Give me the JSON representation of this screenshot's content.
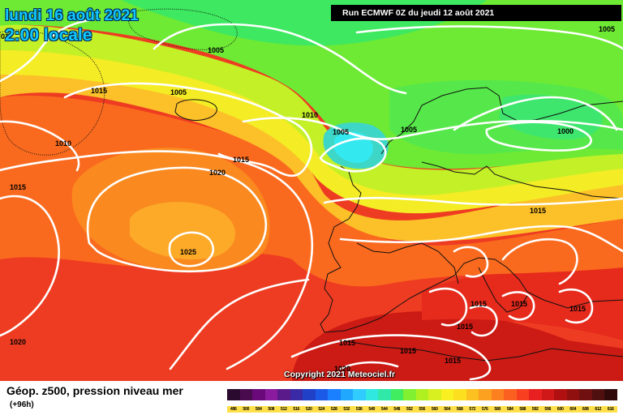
{
  "header": {
    "date_line1": "lundi 16 août 2021",
    "date_line2": "2:00 locale",
    "run_info": "Run ECMWF 0Z du jeudi 12 août 2021",
    "copyright": "Copyright 2021 Meteociel.fr"
  },
  "footer": {
    "product_title": "Géop. z500, pression niveau mer",
    "forecast_step": "(+96h)"
  },
  "isobar_labels": [
    "01",
    "1005",
    "1005",
    "1015",
    "1005",
    "1010",
    "1010",
    "1005",
    "1005",
    "1000",
    "1015",
    "1015",
    "1020",
    "1025",
    "1015",
    "1020",
    "1015",
    "1015",
    "1015",
    "1015",
    "1015",
    "1015",
    "1020",
    "1015"
  ],
  "scale": {
    "labels": [
      "496",
      "500",
      "504",
      "508",
      "512",
      "516",
      "520",
      "524",
      "528",
      "532",
      "536",
      "540",
      "544",
      "548",
      "552",
      "556",
      "560",
      "564",
      "568",
      "572",
      "576",
      "580",
      "584",
      "588",
      "592",
      "596",
      "600",
      "604",
      "608",
      "612",
      "616"
    ],
    "colors": [
      "#2a0a2e",
      "#4a0a4e",
      "#6a0a7a",
      "#8a1a9e",
      "#5a1a8a",
      "#3a2aa6",
      "#2040c8",
      "#1a5ae6",
      "#1a80ff",
      "#20a8ff",
      "#30ccff",
      "#30e8e0",
      "#30e8a8",
      "#40ec60",
      "#80f030",
      "#b0f020",
      "#d8f020",
      "#f8f020",
      "#fce020",
      "#fcc020",
      "#fca020",
      "#fc8020",
      "#fc6020",
      "#f84020",
      "#e82020",
      "#d01818",
      "#b01010",
      "#901010",
      "#701010",
      "#501010",
      "#300a0a"
    ]
  }
}
